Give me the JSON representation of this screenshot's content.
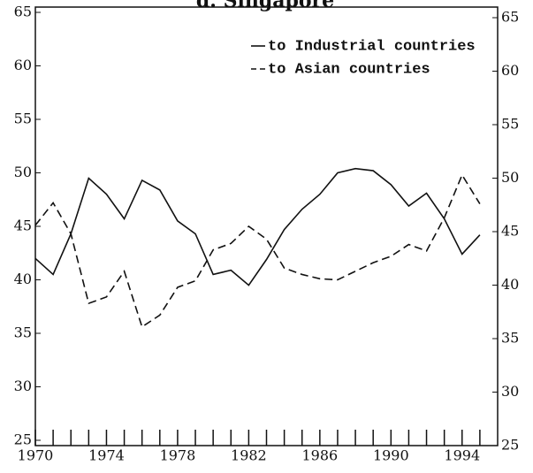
{
  "chart_data": {
    "type": "line",
    "title": "d. Singapore",
    "x": [
      1970,
      1971,
      1972,
      1973,
      1974,
      1975,
      1976,
      1977,
      1978,
      1979,
      1980,
      1981,
      1982,
      1983,
      1984,
      1985,
      1986,
      1987,
      1988,
      1989,
      1990,
      1991,
      1992,
      1993,
      1994,
      1995
    ],
    "series": [
      {
        "name": "to Industrial countries",
        "color": "#111111",
        "dash": "solid",
        "values": [
          42.0,
          40.5,
          44.3,
          49.5,
          48.0,
          45.7,
          49.3,
          48.4,
          45.5,
          44.3,
          40.5,
          40.9,
          39.5,
          41.9,
          44.7,
          46.6,
          48.0,
          50.0,
          50.4,
          50.2,
          48.9,
          46.9,
          48.1,
          45.7,
          42.4,
          44.2
        ]
      },
      {
        "name": "to Asian countries",
        "color": "#111111",
        "dash": "dashed",
        "values": [
          45.1,
          47.2,
          44.3,
          37.8,
          38.4,
          40.8,
          35.6,
          36.7,
          39.3,
          39.9,
          42.8,
          43.4,
          45.0,
          43.8,
          41.1,
          40.5,
          40.1,
          40.0,
          40.8,
          41.6,
          42.2,
          43.3,
          42.7,
          45.8,
          49.8,
          47.1
        ]
      }
    ],
    "xlim": [
      1970,
      1996
    ],
    "xticks": [
      1970,
      1974,
      1978,
      1982,
      1986,
      1990,
      1994
    ],
    "ylim": [
      25,
      65
    ],
    "yticks": [
      25,
      30,
      35,
      40,
      45,
      50,
      55,
      60,
      65
    ],
    "legend": "upper right",
    "grid": false
  }
}
